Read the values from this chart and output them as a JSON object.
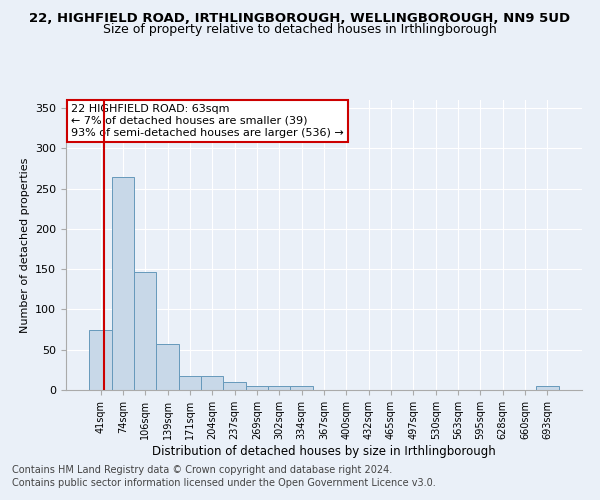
{
  "title": "22, HIGHFIELD ROAD, IRTHLINGBOROUGH, WELLINGBOROUGH, NN9 5UD",
  "subtitle": "Size of property relative to detached houses in Irthlingborough",
  "xlabel": "Distribution of detached houses by size in Irthlingborough",
  "ylabel": "Number of detached properties",
  "bar_labels": [
    "41sqm",
    "74sqm",
    "106sqm",
    "139sqm",
    "171sqm",
    "204sqm",
    "237sqm",
    "269sqm",
    "302sqm",
    "334sqm",
    "367sqm",
    "400sqm",
    "432sqm",
    "465sqm",
    "497sqm",
    "530sqm",
    "563sqm",
    "595sqm",
    "628sqm",
    "660sqm",
    "693sqm"
  ],
  "bar_values": [
    75,
    265,
    147,
    57,
    18,
    18,
    10,
    5,
    5,
    5,
    0,
    0,
    0,
    0,
    0,
    0,
    0,
    0,
    0,
    0,
    5
  ],
  "bar_color": "#c8d8e8",
  "bar_edge_color": "#6699bb",
  "highlight_color": "#cc0000",
  "annotation_box_text": "22 HIGHFIELD ROAD: 63sqm\n← 7% of detached houses are smaller (39)\n93% of semi-detached houses are larger (536) →",
  "ylim": [
    0,
    360
  ],
  "yticks": [
    0,
    50,
    100,
    150,
    200,
    250,
    300,
    350
  ],
  "background_color": "#eaf0f8",
  "plot_bg_color": "#eaf0f8",
  "footer1": "Contains HM Land Registry data © Crown copyright and database right 2024.",
  "footer2": "Contains public sector information licensed under the Open Government Licence v3.0.",
  "title_fontsize": 9.5,
  "subtitle_fontsize": 9,
  "annotation_fontsize": 8,
  "footer_fontsize": 7,
  "ylabel_fontsize": 8,
  "xlabel_fontsize": 8.5
}
